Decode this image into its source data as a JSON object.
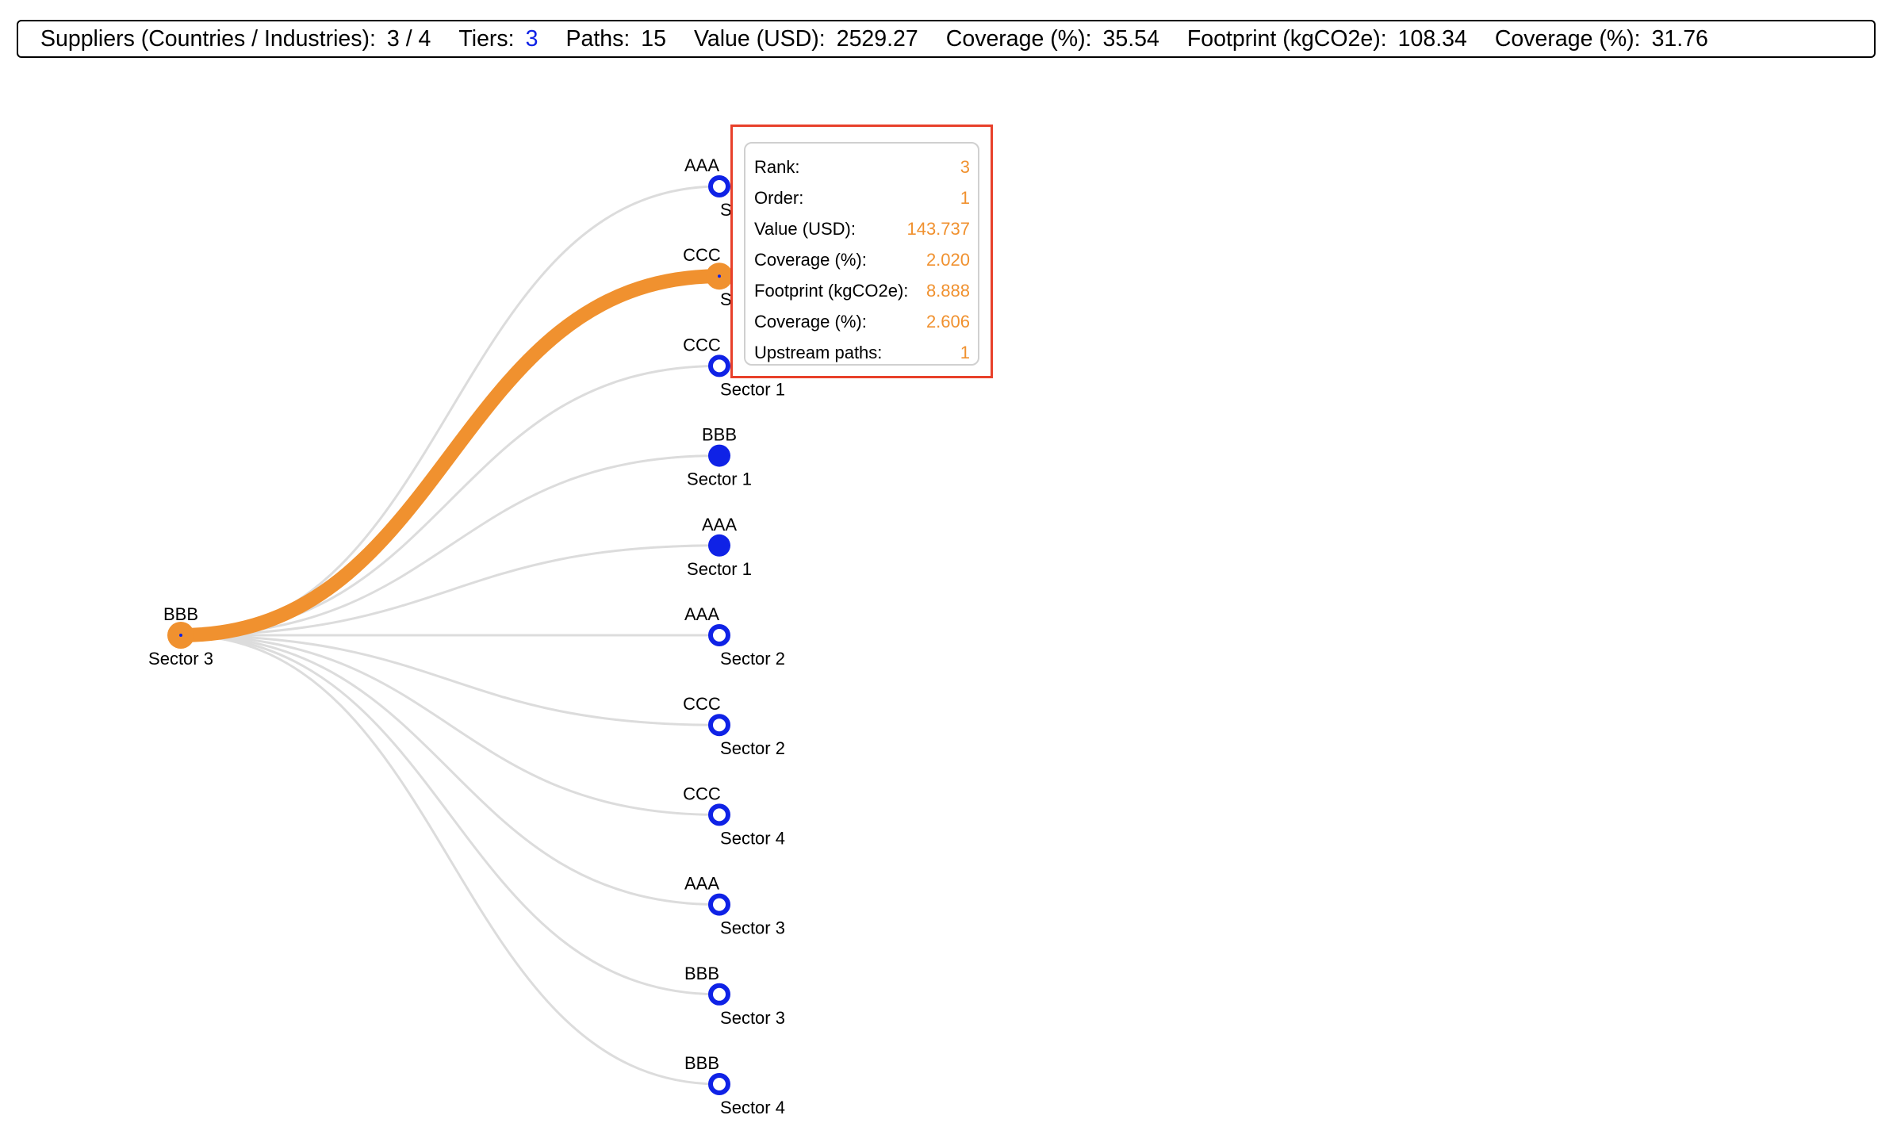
{
  "stats": {
    "suppliers_label": "Suppliers (Countries / Industries):",
    "suppliers_value": "3 / 4",
    "tiers_label": "Tiers:",
    "tiers_value": "3",
    "paths_label": "Paths:",
    "paths_value": "15",
    "value_label": "Value (USD):",
    "value_value": "2529.27",
    "coverage1_label": "Coverage (%):",
    "coverage1_value": "35.54",
    "footprint_label": "Footprint (kgCO2e):",
    "footprint_value": "108.34",
    "coverage2_label": "Coverage (%):",
    "coverage2_value": "31.76"
  },
  "colors": {
    "highlight": "#f0912f",
    "node_blue": "#0f22e6",
    "link_grey": "#dcdcdc",
    "tooltip_border": "#e8402a"
  },
  "root": {
    "country": "BBB",
    "sector": "Sector 3",
    "style": "highlight"
  },
  "children": [
    {
      "country": "AAA",
      "sector": "Sector 1",
      "style": "ring"
    },
    {
      "country": "CCC",
      "sector": "Sector 3",
      "style": "highlight"
    },
    {
      "country": "CCC",
      "sector": "Sector 1",
      "style": "ring"
    },
    {
      "country": "BBB",
      "sector": "Sector 1",
      "style": "filled"
    },
    {
      "country": "AAA",
      "sector": "Sector 1",
      "style": "filled"
    },
    {
      "country": "AAA",
      "sector": "Sector 2",
      "style": "ring"
    },
    {
      "country": "CCC",
      "sector": "Sector 2",
      "style": "ring"
    },
    {
      "country": "CCC",
      "sector": "Sector 4",
      "style": "ring"
    },
    {
      "country": "AAA",
      "sector": "Sector 3",
      "style": "ring"
    },
    {
      "country": "BBB",
      "sector": "Sector 3",
      "style": "ring"
    },
    {
      "country": "BBB",
      "sector": "Sector 4",
      "style": "ring"
    }
  ],
  "tooltip": {
    "rows": [
      {
        "label": "Rank:",
        "value": "3"
      },
      {
        "label": "Order:",
        "value": "1"
      },
      {
        "label": "Value (USD):",
        "value": "143.737"
      },
      {
        "label": "Coverage (%):",
        "value": "2.020"
      },
      {
        "label": "Footprint (kgCO2e):",
        "value": "8.888"
      },
      {
        "label": "Coverage (%):",
        "value": "2.606"
      },
      {
        "label": "Upstream paths:",
        "value": "1"
      }
    ]
  }
}
